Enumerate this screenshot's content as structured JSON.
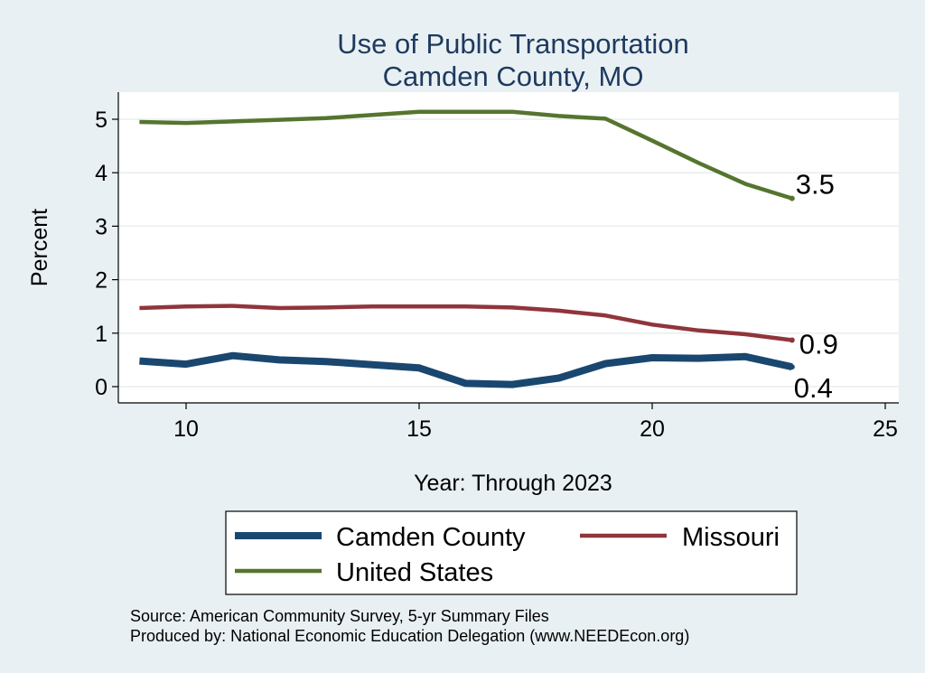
{
  "chart_data": {
    "type": "line",
    "title": [
      "Use of Public Transportation",
      "Camden County, MO"
    ],
    "xlabel": "Year: Through 2023",
    "ylabel": "Percent",
    "xlim": [
      9,
      25
    ],
    "ylim": [
      0,
      5.2
    ],
    "xticks": [
      10,
      15,
      20,
      25
    ],
    "yticks": [
      0,
      1,
      2,
      3,
      4,
      5
    ],
    "grid": true,
    "legend_position": "bottom",
    "x": [
      9,
      10,
      11,
      12,
      13,
      14,
      15,
      16,
      17,
      18,
      19,
      20,
      21,
      22,
      23
    ],
    "series": [
      {
        "name": "Camden County",
        "color": "#1a476f",
        "width": "thick",
        "values": [
          0.48,
          0.42,
          0.58,
          0.5,
          0.47,
          0.41,
          0.35,
          0.06,
          0.04,
          0.16,
          0.43,
          0.54,
          0.53,
          0.56,
          0.37
        ],
        "end_label": "0.4"
      },
      {
        "name": "Missouri",
        "color": "#90353b",
        "width": "medium",
        "values": [
          1.47,
          1.5,
          1.51,
          1.47,
          1.48,
          1.5,
          1.5,
          1.5,
          1.48,
          1.42,
          1.33,
          1.16,
          1.05,
          0.98,
          0.87
        ],
        "end_label": "0.9"
      },
      {
        "name": "United States",
        "color": "#55752f",
        "width": "medium",
        "values": [
          4.95,
          4.93,
          4.96,
          4.99,
          5.02,
          5.08,
          5.14,
          5.14,
          5.14,
          5.06,
          5.01,
          4.6,
          4.18,
          3.79,
          3.52
        ],
        "end_label": "3.5"
      }
    ]
  },
  "source_lines": [
    "Source: American Community Survey, 5-yr Summary Files",
    "Produced by: National Economic Education Delegation (www.NEEDEcon.org)"
  ]
}
